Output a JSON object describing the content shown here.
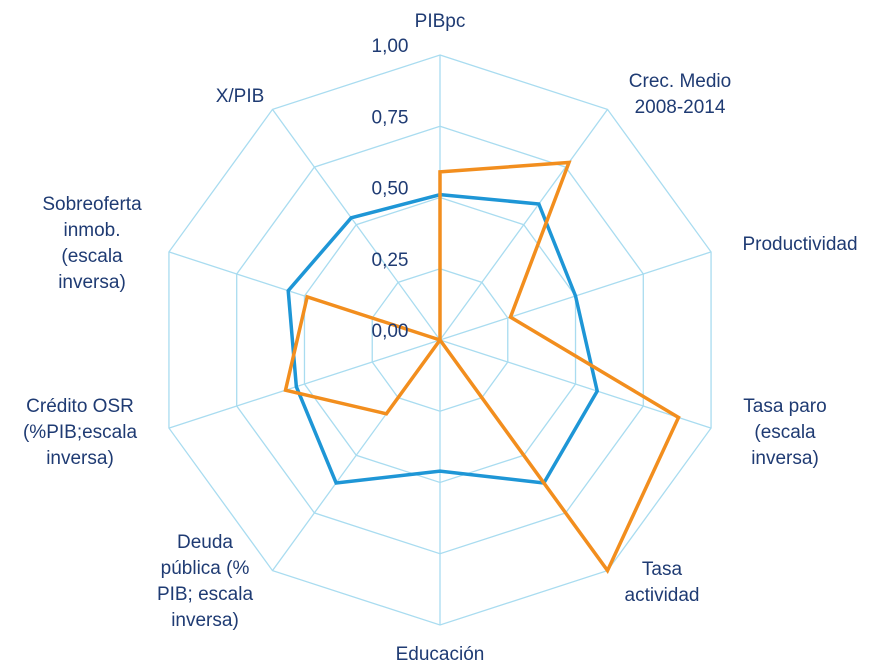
{
  "chart_data": {
    "type": "radar",
    "categories": [
      [
        "PIBpc"
      ],
      [
        "Crec. Medio",
        "2008-2014"
      ],
      [
        "Productividad"
      ],
      [
        "Tasa paro",
        "(escala",
        "inversa)"
      ],
      [
        "Tasa",
        "actividad"
      ],
      [
        "Educación"
      ],
      [
        "Deuda",
        "pública (%",
        "PIB; escala",
        "inversa)"
      ],
      [
        "Crédito OSR",
        "(%PIB;escala",
        "inversa)"
      ],
      [
        "Sobreoferta",
        "inmob.",
        "(escala",
        "inversa)"
      ],
      [
        "X/PIB"
      ]
    ],
    "series": [
      {
        "color": "#1e96d6",
        "values": [
          0.51,
          0.59,
          0.5,
          0.58,
          0.62,
          0.46,
          0.62,
          0.53,
          0.56,
          0.53
        ]
      },
      {
        "color": "#f28e1e",
        "values": [
          0.59,
          0.77,
          0.26,
          0.88,
          1.0,
          0,
          0.32,
          0.57,
          0.49,
          0
        ]
      }
    ],
    "rlim": [
      0,
      1
    ],
    "rticks": [
      {
        "value": 0,
        "label": "0,00"
      },
      {
        "value": 0.25,
        "label": "0,25"
      },
      {
        "value": 0.5,
        "label": "0,50"
      },
      {
        "value": 0.75,
        "label": "0,75"
      },
      {
        "value": 1,
        "label": "1,00"
      }
    ],
    "grid": true
  }
}
